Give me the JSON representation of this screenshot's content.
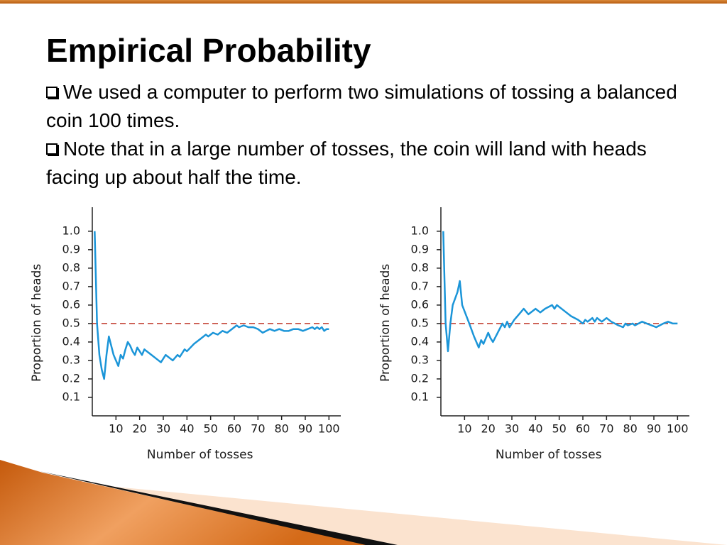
{
  "title": "Empirical Probability",
  "bullets": [
    "We used a computer to perform two simulations of tossing a balanced coin 100 times.",
    "Note that in a large number of tosses, the coin will land with heads facing up about half the time."
  ],
  "chart_data": [
    {
      "type": "line",
      "xlabel": "Number of tosses",
      "ylabel": "Proportion of heads",
      "color": "#1b95d8",
      "reference_line": 0.5,
      "reference_color": "#c0392b",
      "xlim": [
        0,
        105
      ],
      "ylim": [
        0,
        1.13
      ],
      "xticks": [
        10,
        20,
        30,
        40,
        50,
        60,
        70,
        80,
        90,
        100
      ],
      "yticks": [
        0.1,
        0.2,
        0.3,
        0.4,
        0.5,
        0.6,
        0.7,
        0.8,
        0.9,
        {
          "value": 1,
          "label": "1.0"
        }
      ],
      "x": [
        1,
        2,
        3,
        4,
        5,
        6,
        7,
        8,
        9,
        10,
        11,
        12,
        13,
        14,
        15,
        16,
        17,
        18,
        19,
        20,
        21,
        22,
        25,
        28,
        29,
        31,
        34,
        36,
        37,
        39,
        40,
        43,
        45,
        47,
        48,
        49,
        51,
        53,
        55,
        57,
        59,
        61,
        62,
        64,
        66,
        68,
        70,
        72,
        75,
        77,
        79,
        81,
        83,
        85,
        87,
        89,
        91,
        93,
        94,
        95,
        96,
        97,
        98,
        99,
        100
      ],
      "values": [
        1.0,
        0.5,
        0.33,
        0.25,
        0.2,
        0.33,
        0.43,
        0.38,
        0.33,
        0.3,
        0.27,
        0.33,
        0.31,
        0.36,
        0.4,
        0.38,
        0.35,
        0.33,
        0.37,
        0.35,
        0.33,
        0.36,
        0.33,
        0.3,
        0.29,
        0.33,
        0.3,
        0.33,
        0.32,
        0.36,
        0.35,
        0.39,
        0.41,
        0.43,
        0.44,
        0.43,
        0.45,
        0.44,
        0.46,
        0.45,
        0.47,
        0.49,
        0.48,
        0.49,
        0.48,
        0.48,
        0.47,
        0.45,
        0.47,
        0.46,
        0.47,
        0.46,
        0.46,
        0.47,
        0.47,
        0.46,
        0.47,
        0.48,
        0.47,
        0.48,
        0.47,
        0.48,
        0.46,
        0.47,
        0.47
      ]
    },
    {
      "type": "line",
      "xlabel": "Number of tosses",
      "ylabel": "Proportion of heads",
      "color": "#1b95d8",
      "reference_line": 0.5,
      "reference_color": "#c0392b",
      "xlim": [
        0,
        105
      ],
      "ylim": [
        0,
        1.13
      ],
      "xticks": [
        10,
        20,
        30,
        40,
        50,
        60,
        70,
        80,
        90,
        100
      ],
      "yticks": [
        0.1,
        0.2,
        0.3,
        0.4,
        0.5,
        0.6,
        0.7,
        0.8,
        0.9,
        {
          "value": 1,
          "label": "1.0"
        }
      ],
      "x": [
        1,
        2,
        3,
        4,
        5,
        7,
        8,
        9,
        12,
        14,
        16,
        17,
        18,
        20,
        21,
        22,
        24,
        26,
        27,
        28,
        29,
        31,
        33,
        35,
        37,
        40,
        42,
        44,
        47,
        48,
        49,
        52,
        55,
        58,
        60,
        61,
        62,
        64,
        65,
        66,
        68,
        70,
        72,
        75,
        77,
        78,
        79,
        81,
        82,
        85,
        87,
        89,
        91,
        94,
        96,
        98,
        100
      ],
      "values": [
        1.0,
        0.5,
        0.35,
        0.5,
        0.6,
        0.67,
        0.73,
        0.6,
        0.5,
        0.43,
        0.37,
        0.41,
        0.39,
        0.45,
        0.42,
        0.4,
        0.45,
        0.5,
        0.48,
        0.51,
        0.48,
        0.52,
        0.55,
        0.58,
        0.55,
        0.58,
        0.56,
        0.58,
        0.6,
        0.58,
        0.6,
        0.57,
        0.54,
        0.52,
        0.5,
        0.52,
        0.51,
        0.53,
        0.51,
        0.53,
        0.51,
        0.53,
        0.51,
        0.49,
        0.48,
        0.5,
        0.49,
        0.5,
        0.49,
        0.51,
        0.5,
        0.49,
        0.48,
        0.5,
        0.51,
        0.5,
        0.5
      ]
    }
  ]
}
